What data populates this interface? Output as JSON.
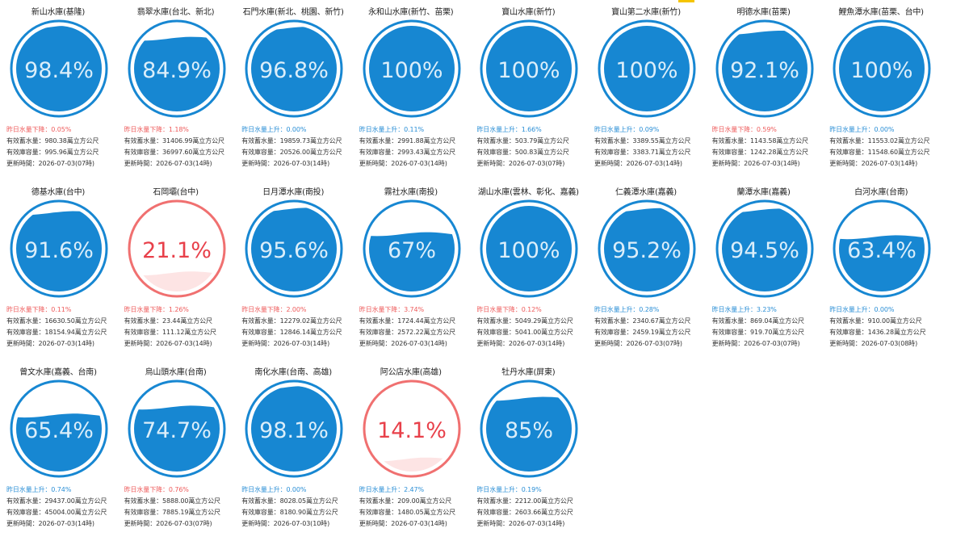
{
  "colors": {
    "blue": "#1787d2",
    "red": "#f07070",
    "text_up": "#2b8fd6",
    "text_down": "#ee5c5c"
  },
  "reservoirs": [
    {
      "name": "新山水庫(基隆)",
      "percent": "98.4%",
      "change": "昨日水量下降：0.05%",
      "direction": "down",
      "storage": "有效蓄水量：980.38萬立方公尺",
      "capacity": "有效庫容量：995.96萬立方公尺",
      "updated": "更新時間：2026-07-03(07時)"
    },
    {
      "name": "翡翠水庫(台北、新北)",
      "percent": "84.9%",
      "change": "昨日水量下降：1.18%",
      "direction": "down",
      "storage": "有效蓄水量：31406.99萬立方公尺",
      "capacity": "有效庫容量：36997.60萬立方公尺",
      "updated": "更新時間：2026-07-03(14時)"
    },
    {
      "name": "石門水庫(新北、桃園、新竹)",
      "percent": "96.8%",
      "change": "昨日水量上升：0.00%",
      "direction": "up",
      "storage": "有效蓄水量：19859.73萬立方公尺",
      "capacity": "有效庫容量：20526.00萬立方公尺",
      "updated": "更新時間：2026-07-03(14時)"
    },
    {
      "name": "永和山水庫(新竹、苗栗)",
      "percent": "100%",
      "change": "昨日水量上升：0.11%",
      "direction": "up",
      "storage": "有效蓄水量：2991.88萬立方公尺",
      "capacity": "有效庫容量：2993.43萬立方公尺",
      "updated": "更新時間：2026-07-03(14時)"
    },
    {
      "name": "寶山水庫(新竹)",
      "percent": "100%",
      "change": "昨日水量上升：1.66%",
      "direction": "up",
      "storage": "有效蓄水量：503.79萬立方公尺",
      "capacity": "有效庫容量：500.83萬立方公尺",
      "updated": "更新時間：2026-07-03(07時)"
    },
    {
      "name": "寶山第二水庫(新竹)",
      "percent": "100%",
      "change": "昨日水量上升：0.09%",
      "direction": "up",
      "storage": "有效蓄水量：3389.55萬立方公尺",
      "capacity": "有效庫容量：3383.71萬立方公尺",
      "updated": "更新時間：2026-07-03(14時)"
    },
    {
      "name": "明德水庫(苗栗)",
      "percent": "92.1%",
      "change": "昨日水量下降：0.59%",
      "direction": "down",
      "storage": "有效蓄水量：1143.58萬立方公尺",
      "capacity": "有效庫容量：1242.28萬立方公尺",
      "updated": "更新時間：2026-07-03(14時)"
    },
    {
      "name": "鯉魚潭水庫(苗栗、台中)",
      "percent": "100%",
      "change": "昨日水量上升：0.00%",
      "direction": "up",
      "storage": "有效蓄水量：11553.02萬立方公尺",
      "capacity": "有效庫容量：11548.60萬立方公尺",
      "updated": "更新時間：2026-07-03(14時)"
    },
    {
      "name": "德基水庫(台中)",
      "percent": "91.6%",
      "change": "昨日水量下降：0.11%",
      "direction": "down",
      "storage": "有效蓄水量：16630.50萬立方公尺",
      "capacity": "有效庫容量：18154.94萬立方公尺",
      "updated": "更新時間：2026-07-03(14時)"
    },
    {
      "name": "石岡壩(台中)",
      "percent": "21.1%",
      "change": "昨日水量下降：1.26%",
      "direction": "down",
      "storage": "有效蓄水量：23.44萬立方公尺",
      "capacity": "有效庫容量：111.12萬立方公尺",
      "updated": "更新時間：2026-07-03(14時)"
    },
    {
      "name": "日月潭水庫(南投)",
      "percent": "95.6%",
      "change": "昨日水量下降：2.00%",
      "direction": "down",
      "storage": "有效蓄水量：12279.02萬立方公尺",
      "capacity": "有效庫容量：12846.14萬立方公尺",
      "updated": "更新時間：2026-07-03(14時)"
    },
    {
      "name": "霧社水庫(南投)",
      "percent": "67%",
      "change": "昨日水量下降：3.74%",
      "direction": "down",
      "storage": "有效蓄水量：1724.44萬立方公尺",
      "capacity": "有效庫容量：2572.22萬立方公尺",
      "updated": "更新時間：2026-07-03(14時)"
    },
    {
      "name": "湖山水庫(雲林、彰化、嘉義)",
      "percent": "100%",
      "change": "昨日水量下降：0.12%",
      "direction": "down",
      "storage": "有效蓄水量：5049.29萬立方公尺",
      "capacity": "有效庫容量：5041.00萬立方公尺",
      "updated": "更新時間：2026-07-03(14時)"
    },
    {
      "name": "仁義潭水庫(嘉義)",
      "percent": "95.2%",
      "change": "昨日水量上升：0.28%",
      "direction": "up",
      "storage": "有效蓄水量：2340.67萬立方公尺",
      "capacity": "有效庫容量：2459.19萬立方公尺",
      "updated": "更新時間：2026-07-03(07時)"
    },
    {
      "name": "蘭潭水庫(嘉義)",
      "percent": "94.5%",
      "change": "昨日水量上升：3.23%",
      "direction": "up",
      "storage": "有效蓄水量：869.04萬立方公尺",
      "capacity": "有效庫容量：919.70萬立方公尺",
      "updated": "更新時間：2026-07-03(07時)"
    },
    {
      "name": "白河水庫(台南)",
      "percent": "63.4%",
      "change": "昨日水量上升：0.00%",
      "direction": "up",
      "storage": "有效蓄水量：910.00萬立方公尺",
      "capacity": "有效庫容量：1436.28萬立方公尺",
      "updated": "更新時間：2026-07-03(08時)"
    },
    {
      "name": "曾文水庫(嘉義、台南)",
      "percent": "65.4%",
      "change": "昨日水量上升：0.74%",
      "direction": "up",
      "storage": "有效蓄水量：29437.00萬立方公尺",
      "capacity": "有效庫容量：45004.00萬立方公尺",
      "updated": "更新時間：2026-07-03(14時)"
    },
    {
      "name": "烏山頭水庫(台南)",
      "percent": "74.7%",
      "change": "昨日水量下降：0.76%",
      "direction": "down",
      "storage": "有效蓄水量：5888.00萬立方公尺",
      "capacity": "有效庫容量：7885.19萬立方公尺",
      "updated": "更新時間：2026-07-03(07時)"
    },
    {
      "name": "南化水庫(台南、高雄)",
      "percent": "98.1%",
      "change": "昨日水量上升：0.00%",
      "direction": "up",
      "storage": "有效蓄水量：8028.05萬立方公尺",
      "capacity": "有效庫容量：8180.90萬立方公尺",
      "updated": "更新時間：2026-07-03(10時)"
    },
    {
      "name": "阿公店水庫(高雄)",
      "percent": "14.1%",
      "change": "昨日水量上升：2.47%",
      "direction": "up",
      "storage": "有效蓄水量：209.00萬立方公尺",
      "capacity": "有效庫容量：1480.05萬立方公尺",
      "updated": "更新時間：2026-07-03(14時)"
    },
    {
      "name": "牡丹水庫(屏東)",
      "percent": "85%",
      "change": "昨日水量上升：0.19%",
      "direction": "up",
      "storage": "有效蓄水量：2212.00萬立方公尺",
      "capacity": "有效庫容量：2603.66萬立方公尺",
      "updated": "更新時間：2026-07-03(14時)"
    }
  ]
}
